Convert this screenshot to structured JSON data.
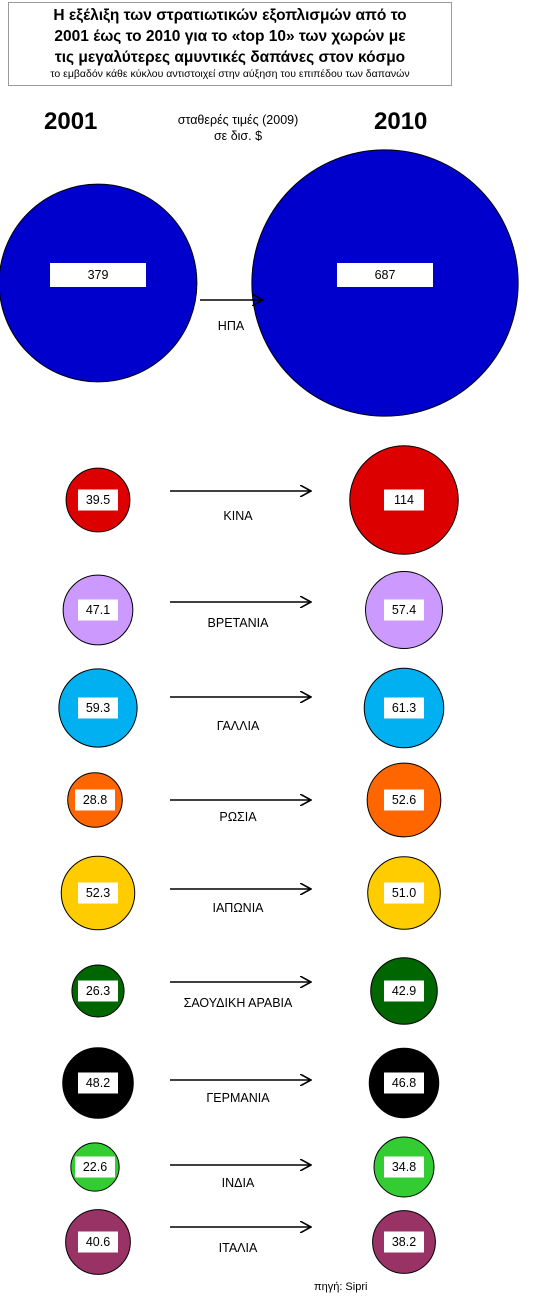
{
  "title": {
    "line1": "Η εξέλιξη των στρατιωτικών εξοπλισμών από το",
    "line2": "2001 έως το 2010 για το «top 10» των χωρών με",
    "line3": "τις μεγαλύτερες αμυντικές δαπάνες στον κόσμο",
    "subtitle": "το εμβαδόν κάθε κύκλου αντιστοιχεί στην αύξηση του επιπέδου των δαπανών"
  },
  "years": {
    "left": "2001",
    "right": "2010"
  },
  "unit_note": {
    "line1": "σταθερές τιμές (2009)",
    "line2": "σε δισ. $"
  },
  "source": "πηγή: Sipri",
  "colors": {
    "usa": "#0000cc",
    "china": "#dd0000",
    "uk": "#cc99ff",
    "france": "#00b0f0",
    "russia": "#ff6600",
    "japan": "#ffcc00",
    "saudi": "#006600",
    "germany": "#000000",
    "india": "#33cc33",
    "italy": "#993366"
  },
  "chart_data": {
    "type": "bubble",
    "encoding": "circle area proportional to spending",
    "unit": "σε δισ. $",
    "x": [
      "2001",
      "2010"
    ],
    "series": [
      {
        "name": "ΗΠΑ",
        "color": "#0000cc",
        "values": [
          379,
          687
        ],
        "labels": [
          "379",
          "687"
        ]
      },
      {
        "name": "ΚΙΝΑ",
        "color": "#dd0000",
        "values": [
          39.5,
          114
        ],
        "labels": [
          "39.5",
          "114"
        ]
      },
      {
        "name": "ΒΡΕΤΑΝΙΑ",
        "color": "#cc99ff",
        "values": [
          47.1,
          57.4
        ],
        "labels": [
          "47.1",
          "57.4"
        ]
      },
      {
        "name": "ΓΑΛΛΙΑ",
        "color": "#00b0f0",
        "values": [
          59.3,
          61.3
        ],
        "labels": [
          "59.3",
          "61.3"
        ]
      },
      {
        "name": "ΡΩΣΙΑ",
        "color": "#ff6600",
        "values": [
          28.8,
          52.6
        ],
        "labels": [
          "28.8",
          "52.6"
        ]
      },
      {
        "name": "ΙΑΠΩΝΙΑ",
        "color": "#ffcc00",
        "values": [
          52.3,
          51.0
        ],
        "labels": [
          "52.3",
          "51.0"
        ]
      },
      {
        "name": "ΣΑΟΥΔΙΚΗ ΑΡΑΒΙΑ",
        "color": "#006600",
        "values": [
          26.3,
          42.9
        ],
        "labels": [
          "26.3",
          "42.9"
        ]
      },
      {
        "name": "ΓΕΡΜΑΝΙΑ",
        "color": "#000000",
        "values": [
          48.2,
          46.8
        ],
        "labels": [
          "48.2",
          "46.8"
        ]
      },
      {
        "name": "ΙΝΔΙΑ",
        "color": "#33cc33",
        "values": [
          22.6,
          34.8
        ],
        "labels": [
          "22.6",
          "34.8"
        ]
      },
      {
        "name": "ΙΤΑΛΙΑ",
        "color": "#993366",
        "values": [
          40.6,
          38.2
        ],
        "labels": [
          "40.6",
          "38.2"
        ]
      }
    ]
  }
}
